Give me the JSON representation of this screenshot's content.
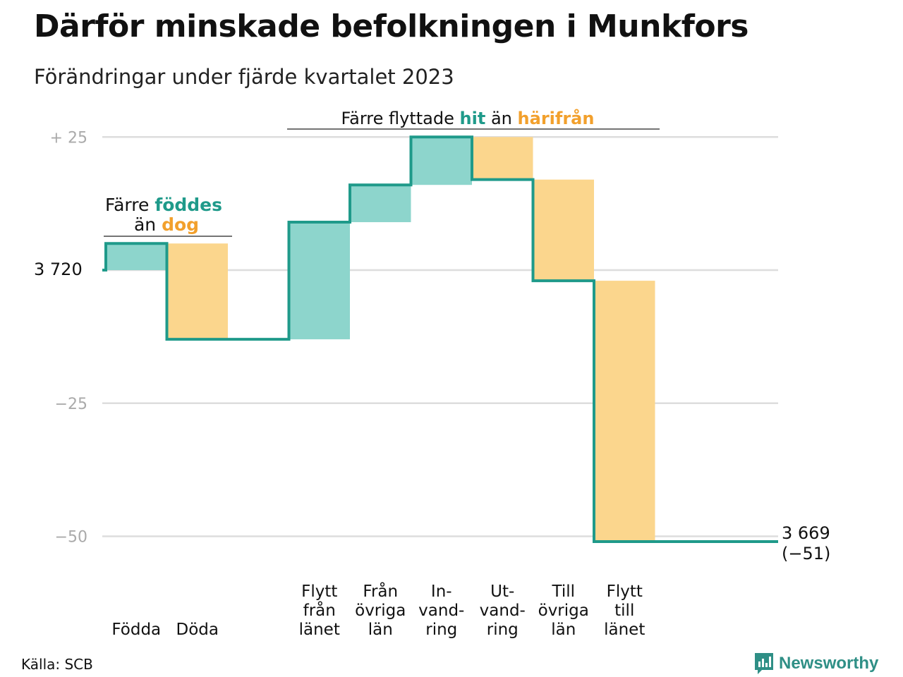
{
  "title": "Därför minskade befolkningen i Munkfors",
  "subtitle": "Förändringar under fjärde kvartalet 2023",
  "source": "Källa: SCB",
  "brand": "Newsworthy",
  "colors": {
    "increase_fill": "#8dd5cc",
    "decrease_fill": "#fbd68d",
    "step_line": "#1f9a8a",
    "teal_text": "#1f9a8a",
    "orange_text": "#f2a02c",
    "grid": "#dddddd",
    "tick_text": "#aaaaaa"
  },
  "annotations": {
    "births_deaths": {
      "line1": "Färre",
      "highlight1": "föddes",
      "line2": "än",
      "highlight2": "dog"
    },
    "migration": {
      "prefix": "Färre flyttade",
      "highlight1": "hit",
      "middle": "än",
      "highlight2": "härifrån"
    }
  },
  "chart_data": {
    "type": "waterfall",
    "title": "Därför minskade befolkningen i Munkfors",
    "subtitle": "Förändringar under fjärde kvartalet 2023",
    "start_value": 3720,
    "start_label": "3 720",
    "end_value": 3669,
    "end_label": "3 669",
    "end_change_label": "(−51)",
    "ylim": [
      -55,
      25
    ],
    "y_ticks": [
      {
        "value": 25,
        "label": "+  25"
      },
      {
        "value": 0,
        "label": ""
      },
      {
        "value": -25,
        "label": "−25"
      },
      {
        "value": -50,
        "label": "−50"
      }
    ],
    "grid": true,
    "steps": [
      {
        "label": [
          "Födda"
        ],
        "change": 5
      },
      {
        "label": [
          "Döda"
        ],
        "change": -18
      },
      {
        "label": [],
        "change": 0
      },
      {
        "label": [
          "Flytt",
          "från",
          "länet"
        ],
        "change": 22
      },
      {
        "label": [
          "Från",
          "övriga",
          "län"
        ],
        "change": 7
      },
      {
        "label": [
          "In-",
          "vand-",
          "ring"
        ],
        "change": 9
      },
      {
        "label": [
          "Ut-",
          "vand-",
          "ring"
        ],
        "change": -8
      },
      {
        "label": [
          "Till",
          "övriga",
          "län"
        ],
        "change": -19
      },
      {
        "label": [
          "Flytt",
          "till",
          "länet"
        ],
        "change": -49
      },
      {
        "label": [],
        "change": 0
      }
    ]
  }
}
